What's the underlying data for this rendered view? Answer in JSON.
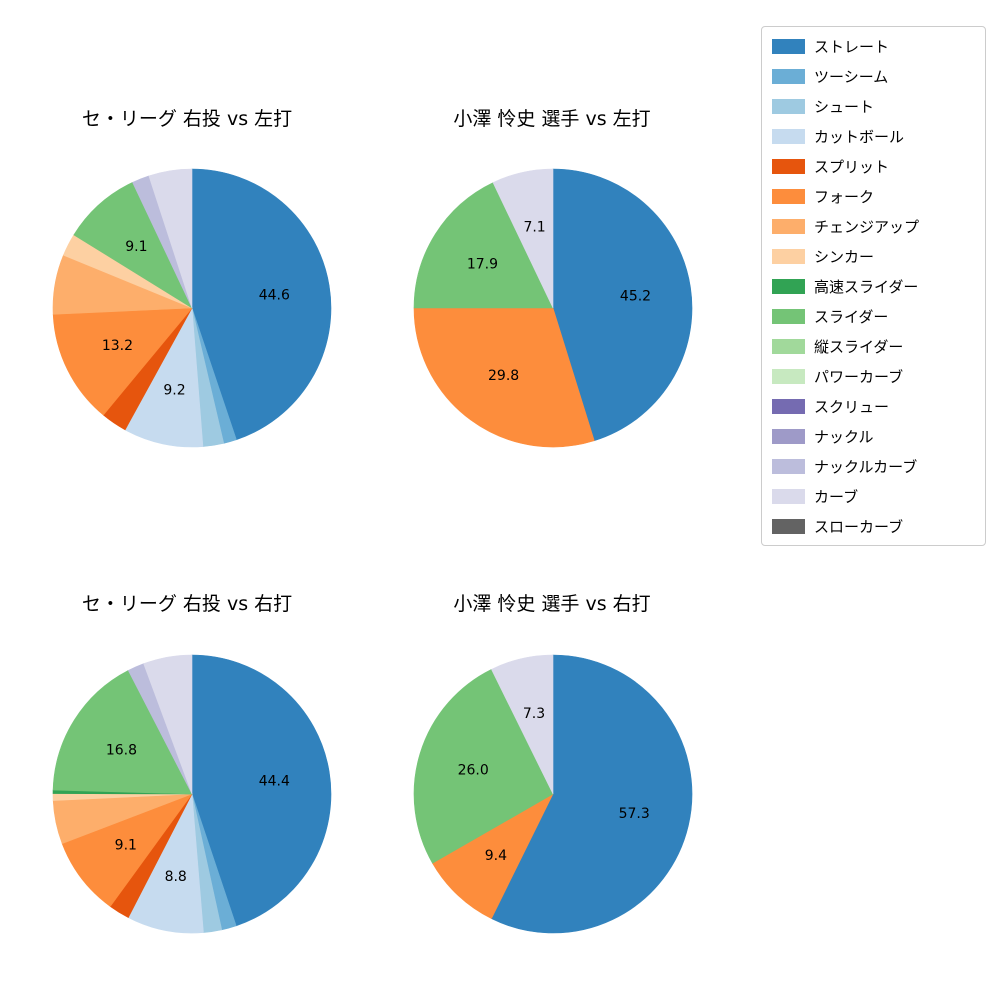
{
  "figure": {
    "background_color": "#ffffff",
    "text_color": "#000000"
  },
  "legend": {
    "position": "upper-right",
    "items": [
      {
        "label": "ストレート",
        "color": "#3182bd"
      },
      {
        "label": "ツーシーム",
        "color": "#6baed6"
      },
      {
        "label": "シュート",
        "color": "#9ecae1"
      },
      {
        "label": "カットボール",
        "color": "#c6dbef"
      },
      {
        "label": "スプリット",
        "color": "#e6550d"
      },
      {
        "label": "フォーク",
        "color": "#fd8d3c"
      },
      {
        "label": "チェンジアップ",
        "color": "#fdae6b"
      },
      {
        "label": "シンカー",
        "color": "#fdd0a2"
      },
      {
        "label": "高速スライダー",
        "color": "#31a354"
      },
      {
        "label": "スライダー",
        "color": "#74c476"
      },
      {
        "label": "縦スライダー",
        "color": "#a1d99b"
      },
      {
        "label": "パワーカーブ",
        "color": "#c7e9c0"
      },
      {
        "label": "スクリュー",
        "color": "#756bb1"
      },
      {
        "label": "ナックル",
        "color": "#9e9ac8"
      },
      {
        "label": "ナックルカーブ",
        "color": "#bcbddc"
      },
      {
        "label": "カーブ",
        "color": "#dadaeb"
      },
      {
        "label": "スローカーブ",
        "color": "#636363"
      }
    ]
  },
  "chart_data": [
    {
      "type": "pie",
      "title": "セ・リーグ 右投 vs 左打",
      "start_angle": "top",
      "direction": "clockwise",
      "label_threshold": 7,
      "value_unit": "percent",
      "labeled_values": {
        "ストレート": 44.6,
        "カットボール": 9.2,
        "フォーク": 13.2,
        "スライダー": 9.1
      },
      "slices": [
        {
          "category": "ストレート",
          "value": 44.6
        },
        {
          "category": "ツーシーム",
          "value": 1.5
        },
        {
          "category": "シュート",
          "value": 2.4
        },
        {
          "category": "カットボール",
          "value": 9.2
        },
        {
          "category": "スプリット",
          "value": 3.0
        },
        {
          "category": "フォーク",
          "value": 13.2
        },
        {
          "category": "チェンジアップ",
          "value": 6.9
        },
        {
          "category": "シンカー",
          "value": 2.6
        },
        {
          "category": "スライダー",
          "value": 9.1
        },
        {
          "category": "ナックルカーブ",
          "value": 2.0
        },
        {
          "category": "カーブ",
          "value": 5.0
        }
      ]
    },
    {
      "type": "pie",
      "title": "小澤 怜史 選手 vs 左打",
      "start_angle": "top",
      "direction": "clockwise",
      "label_threshold": 7,
      "value_unit": "percent",
      "labeled_values": {
        "ストレート": 45.2,
        "フォーク": 29.8,
        "スライダー": 17.9,
        "カーブ": 7.1
      },
      "slices": [
        {
          "category": "ストレート",
          "value": 45.2
        },
        {
          "category": "フォーク",
          "value": 29.8
        },
        {
          "category": "スライダー",
          "value": 17.9
        },
        {
          "category": "カーブ",
          "value": 7.1
        }
      ]
    },
    {
      "type": "pie",
      "title": "セ・リーグ 右投 vs 右打",
      "start_angle": "top",
      "direction": "clockwise",
      "label_threshold": 7,
      "value_unit": "percent",
      "labeled_values": {
        "ストレート": 44.4,
        "カットボール": 8.8,
        "フォーク": 9.1,
        "スライダー": 16.8
      },
      "slices": [
        {
          "category": "ストレート",
          "value": 44.4
        },
        {
          "category": "ツーシーム",
          "value": 1.7
        },
        {
          "category": "シュート",
          "value": 2.1
        },
        {
          "category": "カットボール",
          "value": 8.8
        },
        {
          "category": "スプリット",
          "value": 2.4
        },
        {
          "category": "フォーク",
          "value": 9.1
        },
        {
          "category": "チェンジアップ",
          "value": 5.0
        },
        {
          "category": "シンカー",
          "value": 0.8
        },
        {
          "category": "高速スライダー",
          "value": 0.4
        },
        {
          "category": "スライダー",
          "value": 16.8
        },
        {
          "category": "ナックルカーブ",
          "value": 1.9
        },
        {
          "category": "カーブ",
          "value": 5.6
        }
      ]
    },
    {
      "type": "pie",
      "title": "小澤 怜史 選手 vs 右打",
      "start_angle": "top",
      "direction": "clockwise",
      "label_threshold": 7,
      "value_unit": "percent",
      "labeled_values": {
        "ストレート": 57.3,
        "フォーク": 9.4,
        "スライダー": 26.0,
        "カーブ": 7.3
      },
      "slices": [
        {
          "category": "ストレート",
          "value": 57.3
        },
        {
          "category": "フォーク",
          "value": 9.4
        },
        {
          "category": "スライダー",
          "value": 26.0
        },
        {
          "category": "カーブ",
          "value": 7.3
        }
      ]
    }
  ]
}
